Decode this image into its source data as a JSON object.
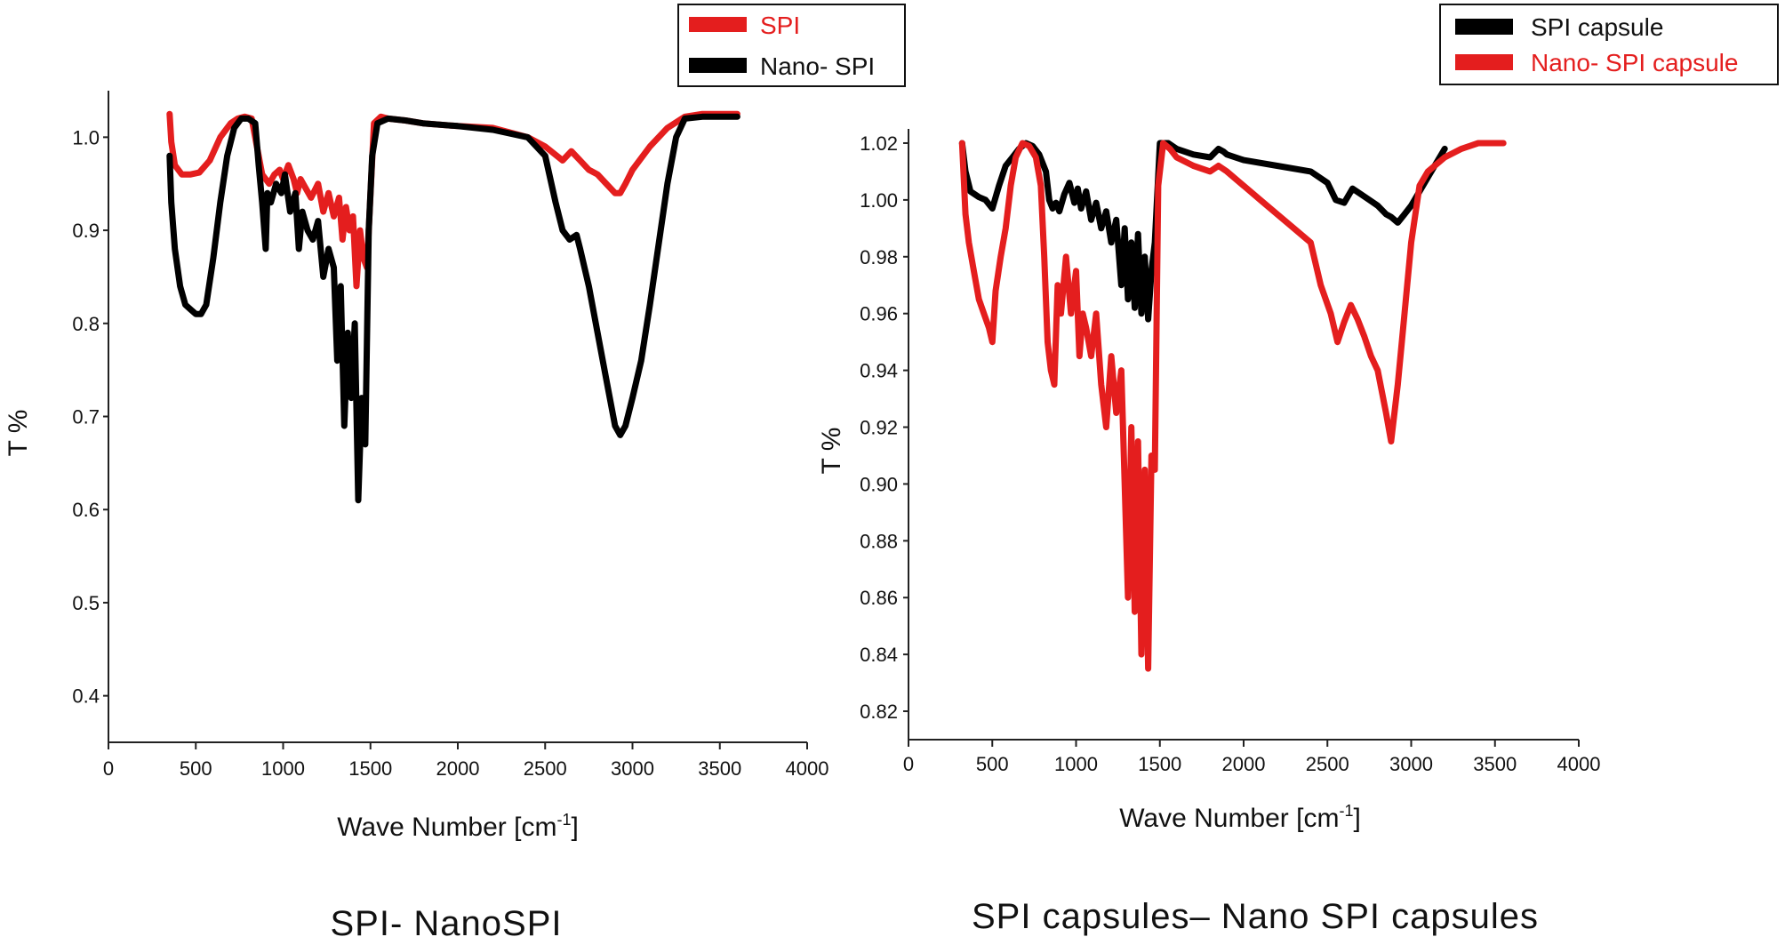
{
  "chart_data": [
    {
      "type": "line",
      "title": "",
      "caption": "SPI- NanoSPI",
      "xlabel": "Wave Number [cm",
      "xlabel_sup": "-1",
      "xlabel_close": "]",
      "ylabel": "T %",
      "xlim": [
        0,
        4000
      ],
      "ylim": [
        0.35,
        1.05
      ],
      "xticks": [
        "0",
        "500",
        "1000",
        "1500",
        "2000",
        "2500",
        "3000",
        "3500",
        "4000"
      ],
      "xtick_values": [
        0,
        500,
        1000,
        1500,
        2000,
        2500,
        3000,
        3500,
        4000
      ],
      "yticks": [
        "0.4",
        "0.5",
        "0.6",
        "0.7",
        "0.8",
        "0.9",
        "1.0"
      ],
      "ytick_values": [
        0.4,
        0.5,
        0.6,
        0.7,
        0.8,
        0.9,
        1.0
      ],
      "grid": false,
      "legend_position": "top-right",
      "series": [
        {
          "name": "SPI",
          "color": "#e41e1e",
          "x": [
            350,
            360,
            380,
            420,
            470,
            520,
            580,
            640,
            700,
            740,
            780,
            820,
            850,
            880,
            900,
            920,
            950,
            980,
            1000,
            1030,
            1060,
            1080,
            1100,
            1130,
            1160,
            1200,
            1230,
            1260,
            1290,
            1320,
            1340,
            1360,
            1380,
            1400,
            1420,
            1440,
            1460,
            1480,
            1500,
            1520,
            1560,
            1600,
            1700,
            1800,
            2000,
            2200,
            2400,
            2500,
            2600,
            2650,
            2700,
            2750,
            2800,
            2850,
            2900,
            2930,
            2960,
            3000,
            3100,
            3200,
            3300,
            3400,
            3500,
            3600
          ],
          "values": [
            1.025,
            0.995,
            0.97,
            0.96,
            0.96,
            0.962,
            0.975,
            1.0,
            1.015,
            1.02,
            1.022,
            1.02,
            0.99,
            0.96,
            0.955,
            0.95,
            0.96,
            0.965,
            0.955,
            0.97,
            0.955,
            0.94,
            0.955,
            0.945,
            0.935,
            0.95,
            0.92,
            0.94,
            0.915,
            0.935,
            0.89,
            0.925,
            0.9,
            0.915,
            0.84,
            0.9,
            0.87,
            0.86,
            0.94,
            1.015,
            1.022,
            1.02,
            1.018,
            1.015,
            1.012,
            1.01,
            1.0,
            0.99,
            0.975,
            0.985,
            0.975,
            0.965,
            0.96,
            0.95,
            0.94,
            0.94,
            0.95,
            0.965,
            0.99,
            1.01,
            1.022,
            1.025,
            1.025,
            1.025
          ]
        },
        {
          "name": "Nano- SPI",
          "color": "#000000",
          "x": [
            350,
            360,
            380,
            410,
            440,
            470,
            500,
            530,
            560,
            600,
            640,
            680,
            720,
            760,
            800,
            840,
            860,
            880,
            900,
            910,
            930,
            960,
            990,
            1010,
            1040,
            1070,
            1090,
            1110,
            1140,
            1170,
            1200,
            1230,
            1260,
            1290,
            1310,
            1330,
            1350,
            1370,
            1390,
            1410,
            1430,
            1450,
            1470,
            1490,
            1510,
            1540,
            1600,
            1700,
            1800,
            2000,
            2200,
            2400,
            2500,
            2560,
            2600,
            2640,
            2680,
            2700,
            2750,
            2800,
            2850,
            2900,
            2930,
            2960,
            3000,
            3050,
            3100,
            3200,
            3250,
            3300,
            3400,
            3500,
            3600
          ],
          "values": [
            0.98,
            0.93,
            0.88,
            0.84,
            0.82,
            0.815,
            0.81,
            0.81,
            0.82,
            0.87,
            0.93,
            0.98,
            1.01,
            1.02,
            1.02,
            1.015,
            0.97,
            0.93,
            0.88,
            0.94,
            0.93,
            0.95,
            0.94,
            0.96,
            0.92,
            0.94,
            0.88,
            0.92,
            0.9,
            0.89,
            0.91,
            0.85,
            0.88,
            0.86,
            0.76,
            0.84,
            0.69,
            0.79,
            0.72,
            0.8,
            0.61,
            0.72,
            0.67,
            0.9,
            0.98,
            1.015,
            1.02,
            1.018,
            1.015,
            1.012,
            1.008,
            1.0,
            0.98,
            0.93,
            0.9,
            0.89,
            0.895,
            0.88,
            0.84,
            0.79,
            0.74,
            0.69,
            0.68,
            0.69,
            0.72,
            0.76,
            0.82,
            0.95,
            1.0,
            1.02,
            1.022,
            1.022,
            1.022
          ]
        }
      ]
    },
    {
      "type": "line",
      "title": "",
      "caption": "SPI capsules– Nano SPI capsules",
      "xlabel": "Wave Number [cm",
      "xlabel_sup": "-1",
      "xlabel_close": "]",
      "ylabel": "T %",
      "xlim": [
        0,
        4000
      ],
      "ylim": [
        0.81,
        1.025
      ],
      "xticks": [
        "0",
        "500",
        "1000",
        "1500",
        "2000",
        "2500",
        "3000",
        "3500",
        "4000"
      ],
      "xtick_values": [
        0,
        500,
        1000,
        1500,
        2000,
        2500,
        3000,
        3500,
        4000
      ],
      "yticks": [
        "0.82",
        "0.84",
        "0.86",
        "0.88",
        "0.90",
        "0.92",
        "0.94",
        "0.96",
        "0.98",
        "1.00",
        "1.02"
      ],
      "ytick_values": [
        0.82,
        0.84,
        0.86,
        0.88,
        0.9,
        0.92,
        0.94,
        0.96,
        0.98,
        1.0,
        1.02
      ],
      "grid": false,
      "legend_position": "top-right",
      "series": [
        {
          "name": "SPI capsule",
          "color": "#000000",
          "x": [
            320,
            340,
            370,
            420,
            460,
            500,
            540,
            580,
            620,
            660,
            700,
            740,
            780,
            820,
            840,
            860,
            880,
            900,
            930,
            960,
            990,
            1010,
            1030,
            1060,
            1090,
            1120,
            1150,
            1180,
            1210,
            1240,
            1270,
            1290,
            1310,
            1330,
            1350,
            1370,
            1390,
            1410,
            1430,
            1450,
            1470,
            1500,
            1550,
            1600,
            1700,
            1800,
            1850,
            1880,
            1900,
            2000,
            2200,
            2400,
            2500,
            2550,
            2600,
            2650,
            2700,
            2750,
            2800,
            2850,
            2880,
            2920,
            2960,
            3000,
            3100,
            3200
          ],
          "values": [
            1.02,
            1.01,
            1.003,
            1.001,
            1.0,
            0.997,
            1.005,
            1.012,
            1.015,
            1.018,
            1.02,
            1.019,
            1.016,
            1.01,
            1.0,
            0.997,
            0.999,
            0.996,
            1.002,
            1.006,
            0.999,
            1.004,
            0.997,
            1.003,
            0.993,
            0.999,
            0.99,
            0.996,
            0.985,
            0.993,
            0.97,
            0.99,
            0.965,
            0.985,
            0.962,
            0.988,
            0.96,
            0.98,
            0.958,
            0.975,
            0.985,
            1.02,
            1.02,
            1.018,
            1.016,
            1.015,
            1.018,
            1.017,
            1.016,
            1.014,
            1.012,
            1.01,
            1.006,
            1.0,
            0.999,
            1.004,
            1.002,
            1.0,
            0.998,
            0.995,
            0.994,
            0.992,
            0.995,
            0.998,
            1.008,
            1.018
          ]
        },
        {
          "name": "Nano- SPI capsule",
          "color": "#e41e1e",
          "x": [
            320,
            340,
            360,
            390,
            420,
            450,
            480,
            500,
            520,
            550,
            580,
            610,
            640,
            680,
            720,
            760,
            790,
            810,
            830,
            850,
            870,
            890,
            910,
            940,
            970,
            1000,
            1020,
            1040,
            1060,
            1090,
            1120,
            1150,
            1180,
            1210,
            1240,
            1270,
            1290,
            1310,
            1330,
            1350,
            1370,
            1390,
            1410,
            1430,
            1450,
            1470,
            1490,
            1520,
            1560,
            1600,
            1700,
            1800,
            1850,
            1900,
            2000,
            2100,
            2200,
            2300,
            2400,
            2460,
            2520,
            2560,
            2600,
            2640,
            2680,
            2720,
            2760,
            2800,
            2850,
            2880,
            2920,
            2960,
            3000,
            3050,
            3100,
            3200,
            3300,
            3400,
            3500,
            3550
          ],
          "values": [
            1.02,
            0.995,
            0.985,
            0.975,
            0.965,
            0.96,
            0.955,
            0.95,
            0.968,
            0.98,
            0.99,
            1.005,
            1.015,
            1.02,
            1.019,
            1.015,
            1.005,
            0.98,
            0.95,
            0.94,
            0.935,
            0.97,
            0.96,
            0.98,
            0.96,
            0.975,
            0.945,
            0.96,
            0.955,
            0.945,
            0.96,
            0.935,
            0.92,
            0.945,
            0.925,
            0.94,
            0.9,
            0.86,
            0.92,
            0.855,
            0.915,
            0.84,
            0.905,
            0.835,
            0.91,
            0.905,
            1.005,
            1.02,
            1.018,
            1.015,
            1.012,
            1.01,
            1.012,
            1.01,
            1.005,
            1.0,
            0.995,
            0.99,
            0.985,
            0.97,
            0.96,
            0.95,
            0.957,
            0.963,
            0.958,
            0.952,
            0.945,
            0.94,
            0.925,
            0.915,
            0.935,
            0.96,
            0.985,
            1.005,
            1.01,
            1.015,
            1.018,
            1.02,
            1.02,
            1.02
          ]
        }
      ]
    }
  ]
}
